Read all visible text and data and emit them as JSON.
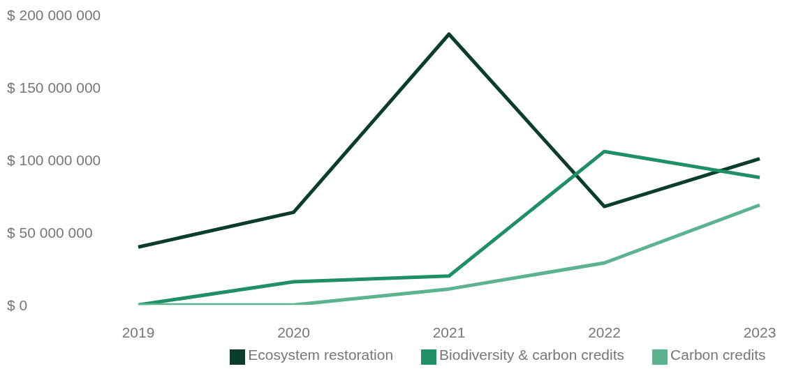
{
  "chart_data": {
    "type": "line",
    "categories": [
      "2019",
      "2020",
      "2021",
      "2022",
      "2023"
    ],
    "series": [
      {
        "name": "Ecosystem restoration",
        "color": "#0b3d2c",
        "values": [
          40000000,
          64000000,
          187000000,
          68000000,
          101000000
        ]
      },
      {
        "name": "Biodiversity & carbon credits",
        "color": "#1f8f66",
        "values": [
          0,
          16000000,
          20000000,
          106000000,
          88000000
        ]
      },
      {
        "name": "Carbon credits",
        "color": "#5bb38f",
        "values": [
          0,
          0,
          11000000,
          29000000,
          69000000
        ]
      }
    ],
    "ylim": [
      0,
      200000000
    ],
    "yticks": [
      {
        "value": 0,
        "label": "$ 0"
      },
      {
        "value": 50000000,
        "label": "$ 50 000 000"
      },
      {
        "value": 100000000,
        "label": "$ 100 000 000"
      },
      {
        "value": 150000000,
        "label": "$ 150 000 000"
      },
      {
        "value": 200000000,
        "label": "$ 200 000 000"
      }
    ],
    "grid": false,
    "legend": "bottom",
    "marker": "none",
    "line_style": "solid"
  }
}
